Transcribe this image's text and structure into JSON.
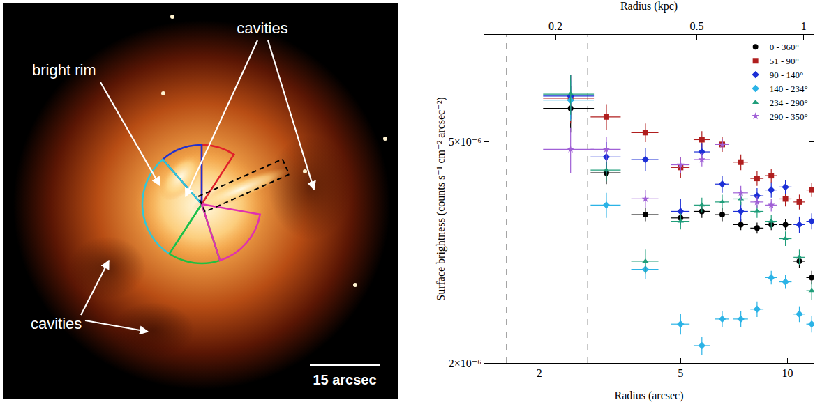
{
  "image_panel": {
    "annotations": {
      "bright_rim": "bright rim",
      "cavities_top": "cavities",
      "cavities_bottom": "cavities"
    },
    "scale_bar": "15 arcsec"
  },
  "chart_data": {
    "type": "scatter",
    "x_label": "Radius (arcsec)",
    "x2_label": "Radius (kpc)",
    "y_label": "Surface brightness (counts s⁻¹ cm⁻² arcsec⁻²)",
    "log": true,
    "xlim": [
      1.4,
      11.85
    ],
    "xticks": [
      2,
      5,
      10
    ],
    "x2lim": [
      0.126,
      1.0665
    ],
    "x2ticks": [
      0.2,
      0.5,
      1
    ],
    "ylim": [
      2e-06,
      7.8e-06
    ],
    "yticks": [
      {
        "value": 2e-06,
        "label": "2×10⁻⁶"
      },
      {
        "value": 5e-06,
        "label": "5×10⁻⁶"
      }
    ],
    "reference_lines": [
      1.62,
      2.74
    ],
    "legend": "upper right",
    "x": [
      2.45,
      3.09,
      3.98,
      5.0,
      5.74,
      6.55,
      7.39,
      8.21,
      9.0,
      9.87,
      10.8,
      11.7
    ],
    "x_err": [
      0.4,
      0.3,
      0.35,
      0.3,
      0.3,
      0.3,
      0.35,
      0.35,
      0.35,
      0.4,
      0.4,
      0.4
    ],
    "series": [
      {
        "name": "0 - 360°",
        "color": "#000000",
        "marker": "circle",
        "values": [
          5.75e-06,
          4.4e-06,
          3.7e-06,
          3.65e-06,
          3.75e-06,
          3.7e-06,
          3.55e-06,
          3.5e-06,
          3.55e-06,
          3.55e-06,
          3.05e-06,
          2.85e-06
        ],
        "y_err": [
          5.5e-07,
          2e-07,
          1e-07,
          1e-07,
          1e-07,
          1e-07,
          8e-08,
          8e-08,
          8e-08,
          8e-08,
          8e-08,
          8e-08
        ]
      },
      {
        "name": "51 - 90°",
        "color": "#b01e1e",
        "marker": "square",
        "values": [
          6e-06,
          5.55e-06,
          5.2e-06,
          4.5e-06,
          5.05e-06,
          4.95e-06,
          4.6e-06,
          4.3e-06,
          4.35e-06,
          3.95e-06,
          3.9e-06,
          4.1e-06
        ],
        "y_err": [
          6e-07,
          3e-07,
          2e-07,
          2e-07,
          1.8e-07,
          1.5e-07,
          1.5e-07,
          1.3e-07,
          1.3e-07,
          1.2e-07,
          1.2e-07,
          1.2e-07
        ]
      },
      {
        "name": "90 - 140°",
        "color": "#1c2fd6",
        "marker": "diamond",
        "values": [
          6.05e-06,
          4.7e-06,
          4.65e-06,
          3.75e-06,
          4.8e-06,
          4.2e-06,
          3.75e-06,
          4e-06,
          4.1e-06,
          4.15e-06,
          3.55e-06,
          3.6e-06
        ],
        "y_err": [
          5.5e-07,
          3e-07,
          2.2e-07,
          2e-07,
          1.8e-07,
          1.5e-07,
          1.5e-07,
          1.3e-07,
          1.3e-07,
          1.2e-07,
          1.2e-07,
          1.2e-07
        ]
      },
      {
        "name": "140 - 234°",
        "color": "#2bb3e6",
        "marker": "diamond",
        "values": [
          5.95e-06,
          3.85e-06,
          2.95e-06,
          2.35e-06,
          2.15e-06,
          2.4e-06,
          2.4e-06,
          2.5e-06,
          2.85e-06,
          2.8e-06,
          2.45e-06,
          2.35e-06
        ],
        "y_err": [
          5e-07,
          2e-07,
          1.2e-07,
          1e-07,
          8e-08,
          8e-08,
          8e-08,
          8e-08,
          8e-08,
          8e-08,
          8e-08,
          8e-08
        ]
      },
      {
        "name": "234 - 290°",
        "color": "#1f9e7a",
        "marker": "triangle-up",
        "values": [
          6.1e-06,
          4.45e-06,
          3.05e-06,
          3.6e-06,
          3.85e-06,
          3.9e-06,
          3.95e-06,
          3.75e-06,
          3.6e-06,
          3.35e-06,
          3.1e-06,
          2.7e-06
        ],
        "y_err": [
          5e-07,
          2e-07,
          1.5e-07,
          1.2e-07,
          1.2e-07,
          1.2e-07,
          1e-07,
          1e-07,
          1e-07,
          1e-07,
          1e-07,
          1e-07
        ]
      },
      {
        "name": "290 - 350°",
        "color": "#a060d6",
        "marker": "star",
        "values": [
          4.85e-06,
          4.85e-06,
          3.95e-06,
          4.55e-06,
          4.65e-06,
          4.95e-06,
          4.05e-06,
          3.9e-06,
          3.85e-06,
          null,
          null,
          null
        ],
        "y_err": [
          4.5e-07,
          2.5e-07,
          1.5e-07,
          1.5e-07,
          1.3e-07,
          1.2e-07,
          1.2e-07,
          1e-07,
          1e-07,
          null,
          null,
          null
        ]
      }
    ]
  }
}
